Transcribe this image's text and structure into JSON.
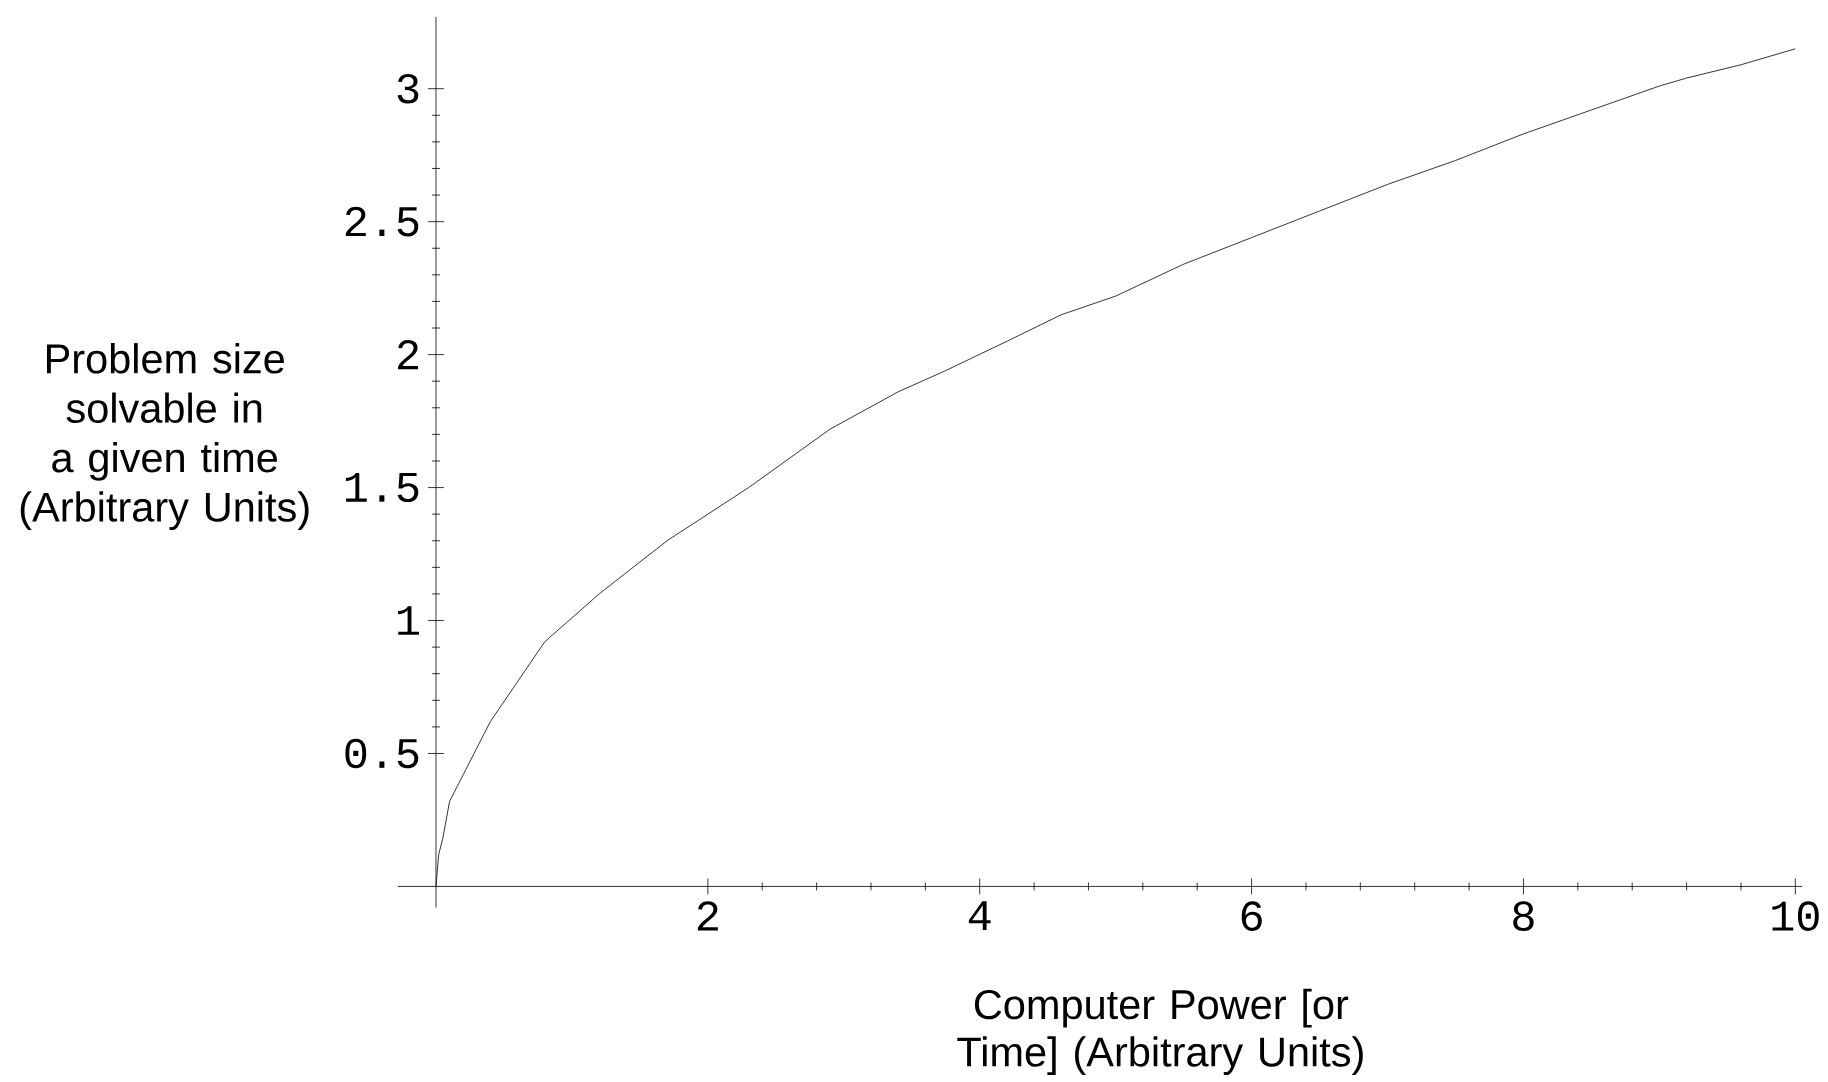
{
  "chart_data": {
    "type": "line",
    "xlabel": "Computer Power [or Time] (Arbitrary Units)",
    "ylabel": "Problem size solvable in a given time (Arbitrary Units)",
    "x": [
      0,
      0.02,
      0.05,
      0.1,
      0.2,
      0.4,
      0.8,
      1.2,
      1.7,
      2.3,
      2.9,
      3.4,
      3.75,
      4.2,
      4.6,
      5,
      5.5,
      6,
      6.5,
      7,
      7.5,
      8,
      8.5,
      9,
      9.2,
      9.6,
      10
    ],
    "series": [
      {
        "color": "#000000",
        "values": [
          0,
          0.12,
          0.18,
          0.32,
          0.42,
          0.62,
          0.92,
          1.1,
          1.3,
          1.5,
          1.72,
          1.86,
          1.94,
          2.05,
          2.15,
          2.22,
          2.34,
          2.44,
          2.54,
          2.64,
          2.73,
          2.83,
          2.92,
          3.01,
          3.04,
          3.09,
          3.15
        ]
      }
    ],
    "xlim": [
      -0.28,
      10.05
    ],
    "ylim": [
      -0.08,
      3.27
    ],
    "xticks": [
      2,
      4,
      6,
      8,
      10
    ],
    "yticks": [
      0.5,
      1,
      1.5,
      2,
      2.5,
      3
    ],
    "grid": false,
    "marker": "none",
    "line_style": "solid"
  }
}
